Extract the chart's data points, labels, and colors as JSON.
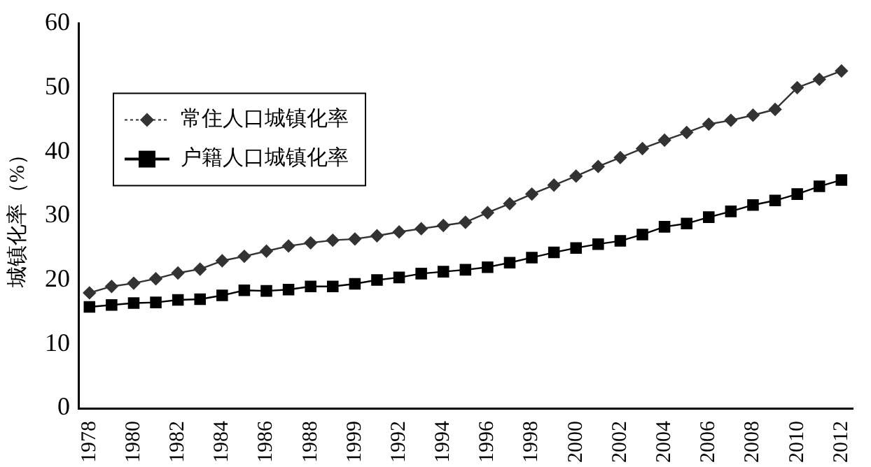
{
  "chart_data": {
    "type": "line",
    "ylabel": "城镇化率（%）",
    "categories": [
      "1978",
      null,
      "1980",
      null,
      "1982",
      null,
      "1984",
      null,
      "1986",
      null,
      "1988",
      null,
      "1999",
      null,
      "1992",
      null,
      "1994",
      null,
      "1996",
      null,
      "1998",
      null,
      "2000",
      null,
      "2002",
      null,
      "2004",
      null,
      "2006",
      null,
      "2008",
      null,
      "2010",
      null,
      "2012"
    ],
    "series": [
      {
        "name": "常住人口城镇化率",
        "color": "#333333",
        "marker": "diamond",
        "values": [
          18.0,
          19.0,
          19.5,
          20.2,
          21.1,
          21.7,
          23.0,
          23.7,
          24.5,
          25.3,
          25.8,
          26.2,
          26.4,
          26.9,
          27.5,
          28.0,
          28.5,
          29.0,
          30.5,
          31.9,
          33.4,
          34.8,
          36.2,
          37.7,
          39.1,
          40.5,
          41.8,
          43.0,
          44.3,
          44.9,
          45.7,
          46.6,
          50.0,
          51.3,
          52.6
        ]
      },
      {
        "name": "户籍人口城镇化率",
        "color": "#000000",
        "marker": "square",
        "values": [
          15.8,
          16.1,
          16.4,
          16.5,
          16.9,
          17.0,
          17.6,
          18.4,
          18.3,
          18.5,
          19.0,
          19.0,
          19.4,
          20.0,
          20.4,
          21.0,
          21.3,
          21.6,
          22.0,
          22.7,
          23.5,
          24.3,
          25.0,
          25.6,
          26.1,
          27.1,
          28.3,
          28.8,
          29.8,
          30.7,
          31.7,
          32.4,
          33.4,
          34.6,
          35.6
        ]
      }
    ],
    "ylim": [
      0,
      60
    ],
    "yticks": [
      0,
      10,
      20,
      30,
      40,
      50,
      60
    ],
    "grid": false,
    "legend": "top left"
  }
}
